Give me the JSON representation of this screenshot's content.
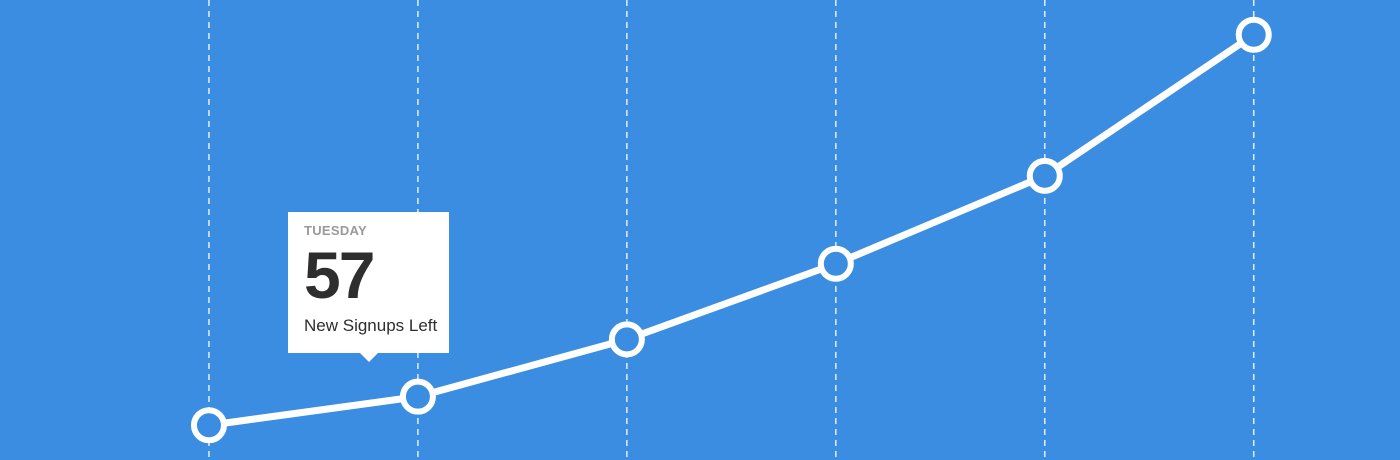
{
  "colors": {
    "background": "#3a8de0",
    "line": "#ffffff",
    "marker_fill": "#3a8de0",
    "tooltip_bg": "#ffffff",
    "tooltip_day": "#9a9a9a",
    "tooltip_text": "#2e2e2e"
  },
  "tooltip": {
    "day": "TUESDAY",
    "value": "57",
    "label": "New Signups Left"
  },
  "chart_data": {
    "type": "line",
    "title": "",
    "xlabel": "",
    "ylabel": "",
    "grid": "vertical dashed",
    "x": [
      1,
      2,
      3,
      4,
      5,
      6
    ],
    "series": [
      {
        "values": [
          0.4,
          3.2,
          8.8,
          16.2,
          24.8,
          38.6
        ]
      }
    ],
    "xlim": [
      0.0,
      6.7
    ],
    "ylim": [
      -3.0,
      42.0
    ],
    "highlight_index": 1
  }
}
